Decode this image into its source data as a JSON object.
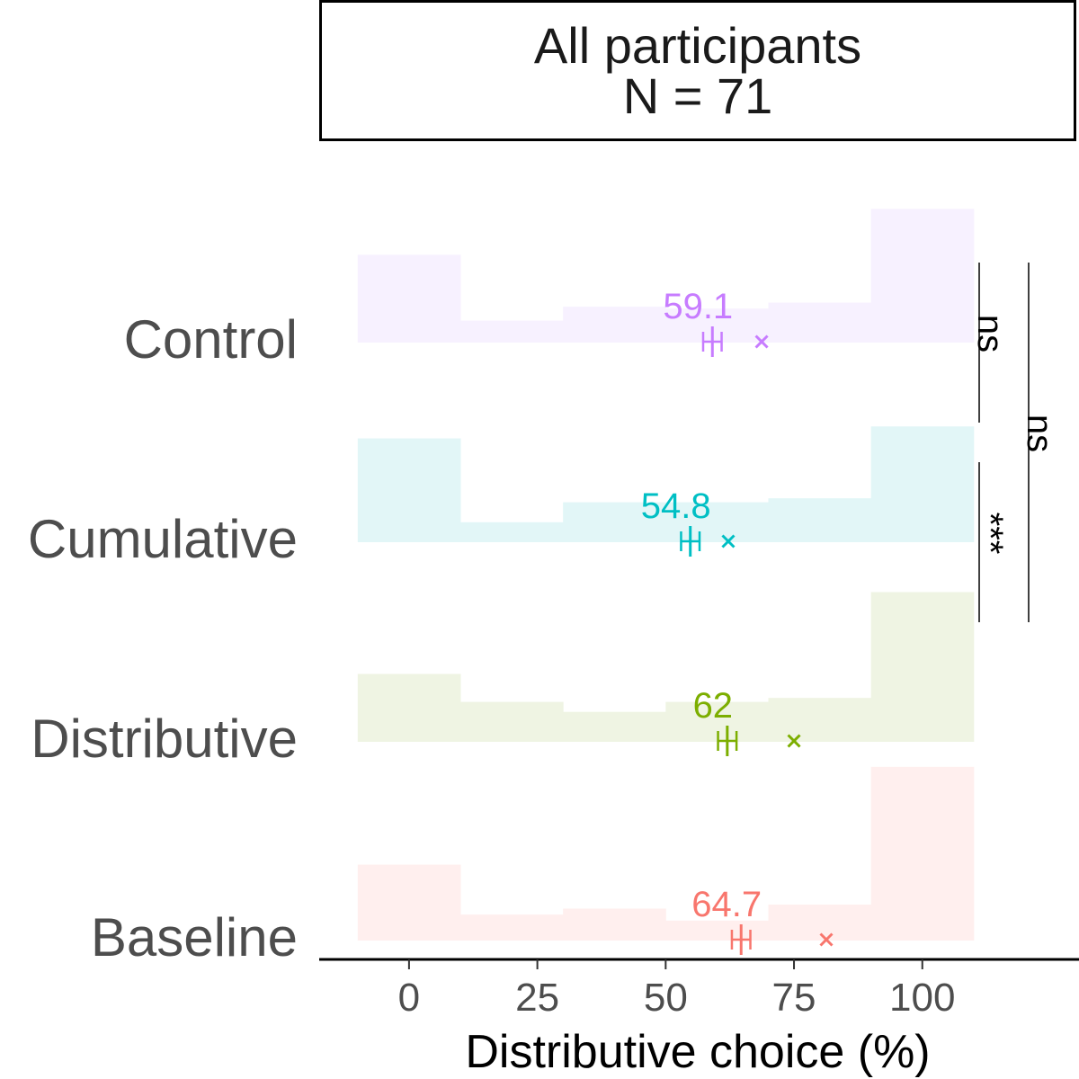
{
  "panel": {
    "title_line1": "All participants",
    "title_line2": "N = 71"
  },
  "chart_data": {
    "type": "histogram",
    "xlabel": "Distributive choice (%)",
    "xlim": [
      -17.5,
      130
    ],
    "x_ticks": [
      0,
      25,
      50,
      75,
      100
    ],
    "bin_edges": [
      -10,
      10,
      30,
      50,
      70,
      90,
      110
    ],
    "categories": [
      "Control",
      "Cumulative",
      "Distributive",
      "Baseline"
    ],
    "series": [
      {
        "name": "Control",
        "color": "#C77CFF",
        "fill": "#F7F1FF",
        "bin_heights": [
          0.44,
          0.11,
          0.18,
          0.17,
          0.2,
          0.67
        ],
        "mean": 59.1,
        "mean_label": "59.1",
        "ci": [
          57.3,
          60.9
        ],
        "marker_x": 68.7
      },
      {
        "name": "Cumulative",
        "color": "#00BFC4",
        "fill": "#E2F6F7",
        "bin_heights": [
          0.52,
          0.1,
          0.2,
          0.2,
          0.22,
          0.58
        ],
        "mean": 54.8,
        "mean_label": "54.8",
        "ci": [
          53.0,
          56.6
        ],
        "marker_x": 62.2
      },
      {
        "name": "Distributive",
        "color": "#7CAE00",
        "fill": "#EFF4E3",
        "bin_heights": [
          0.34,
          0.2,
          0.15,
          0.2,
          0.22,
          0.75
        ],
        "mean": 62.0,
        "mean_label": "62",
        "ci": [
          60.2,
          63.8
        ],
        "marker_x": 75.0
      },
      {
        "name": "Baseline",
        "color": "#F8766D",
        "fill": "#FFEFEE",
        "bin_heights": [
          0.38,
          0.13,
          0.16,
          0.1,
          0.18,
          0.87
        ],
        "mean": 64.7,
        "mean_label": "64.7",
        "ci": [
          62.9,
          66.5
        ],
        "marker_x": 81.3
      }
    ],
    "significance": [
      {
        "between": [
          "Control",
          "Cumulative"
        ],
        "label": "ns"
      },
      {
        "between": [
          "Cumulative",
          "Distributive"
        ],
        "label": "***"
      },
      {
        "between": [
          "Control",
          "Distributive"
        ],
        "label": "ns"
      }
    ]
  }
}
